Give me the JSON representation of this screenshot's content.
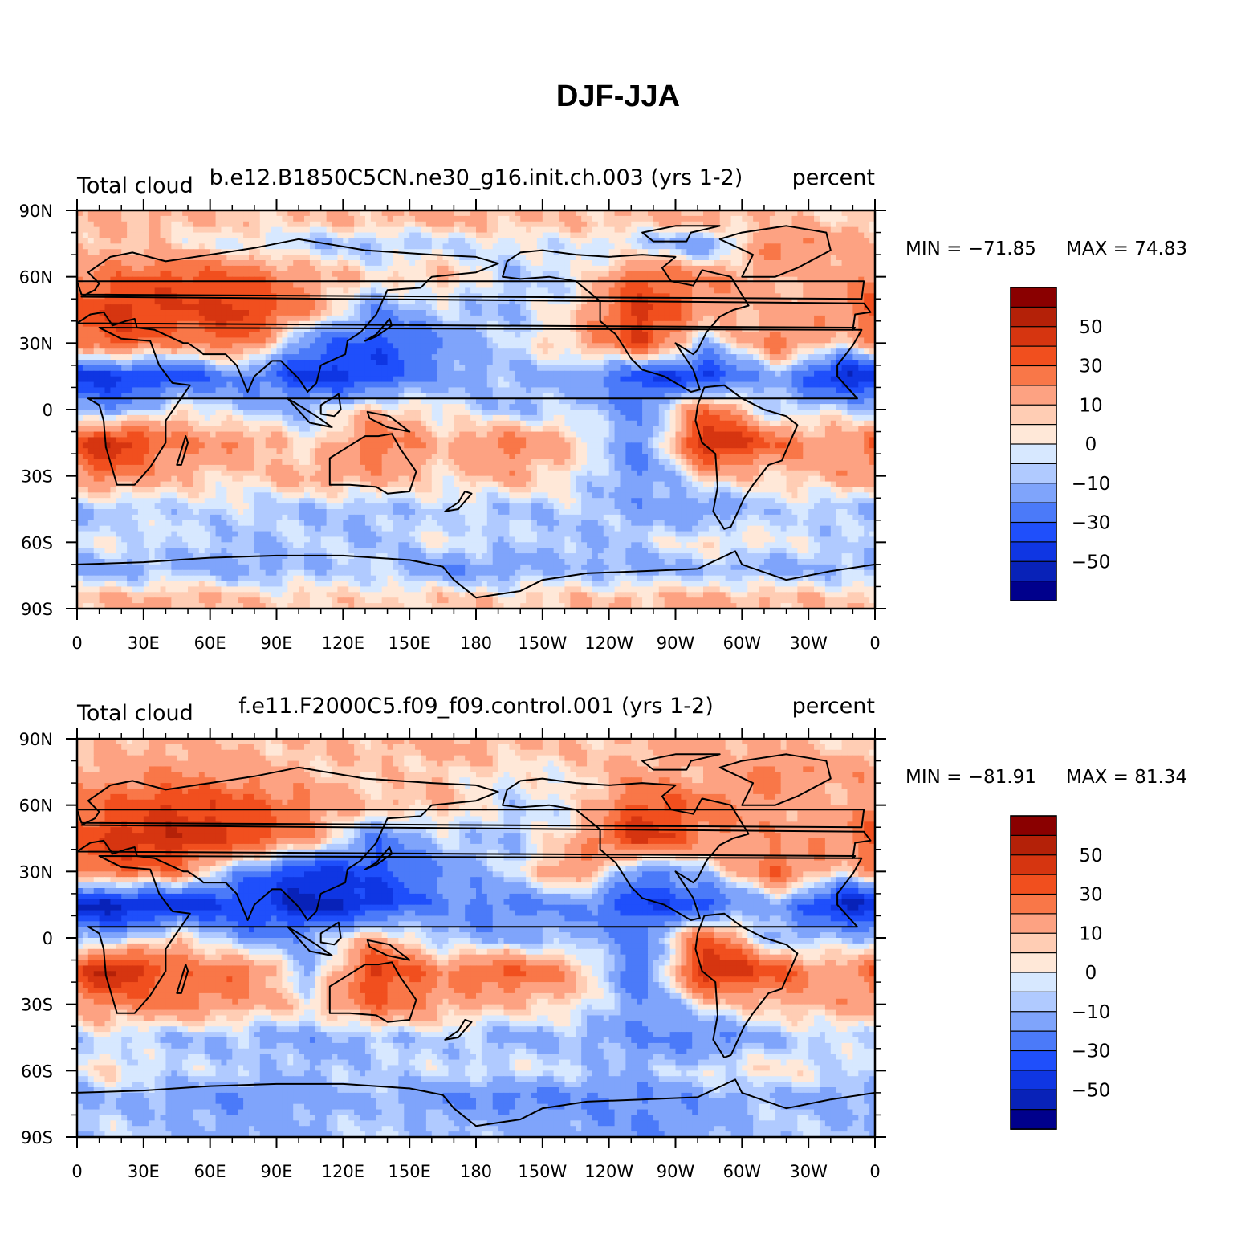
{
  "figure": {
    "title": "DJF-JJA"
  },
  "chart_data": [
    {
      "type": "heatmap",
      "title": "b.e12.B1850C5CN.ne30_g16.init.ch.003 (yrs 1-2)",
      "left_label": "Total cloud",
      "units": "percent",
      "min_label": "MIN = −71.85",
      "max_label": "MAX =   74.83",
      "min": -71.85,
      "max": 74.83,
      "xlabel": "",
      "ylabel": "",
      "xlim": [
        0,
        360
      ],
      "ylim": [
        -90,
        90
      ],
      "x_ticks": [
        "0",
        "30E",
        "60E",
        "90E",
        "120E",
        "150E",
        "180",
        "150W",
        "120W",
        "90W",
        "60W",
        "30W",
        "0"
      ],
      "y_ticks": [
        "90N",
        "60N",
        "30N",
        "0",
        "30S",
        "60S",
        "90S"
      ],
      "colorbar_levels": [
        -60,
        -50,
        -40,
        -30,
        -20,
        -10,
        -5,
        0,
        5,
        10,
        20,
        30,
        40,
        50,
        60
      ],
      "colorbar_labels": [
        "50",
        "30",
        "10",
        "0",
        "−10",
        "−30",
        "−50"
      ],
      "colorbar_colors": [
        "#00008c",
        "#0822b8",
        "#0f36e3",
        "#1f4ffb",
        "#4b7af9",
        "#7fa4fb",
        "#b0caff",
        "#d7e8ff",
        "#ffe8d8",
        "#ffcdb4",
        "#fda282",
        "#f97748",
        "#f14f1e",
        "#d63510",
        "#b42108",
        "#8a0000"
      ],
      "bands": [
        {
          "lat": 85,
          "values": [
            12,
            10,
            8,
            8,
            10,
            12,
            10,
            8,
            10,
            12,
            8,
            6
          ]
        },
        {
          "lat": 75,
          "values": [
            8,
            4,
            -2,
            -8,
            -10,
            -6,
            -2,
            0,
            -8,
            -20,
            25,
            15
          ]
        },
        {
          "lat": 60,
          "values": [
            25,
            35,
            30,
            15,
            5,
            10,
            -8,
            -3,
            30,
            20,
            10,
            15
          ]
        },
        {
          "lat": 45,
          "values": [
            45,
            40,
            45,
            20,
            -20,
            -5,
            -10,
            5,
            45,
            15,
            10,
            20
          ]
        },
        {
          "lat": 30,
          "values": [
            35,
            20,
            30,
            -25,
            -35,
            -20,
            -5,
            10,
            40,
            -10,
            25,
            5
          ]
        },
        {
          "lat": 15,
          "values": [
            -45,
            -40,
            -20,
            -45,
            -40,
            -15,
            -10,
            -15,
            -40,
            -45,
            -10,
            -55
          ]
        },
        {
          "lat": 0,
          "values": [
            -20,
            5,
            -10,
            -10,
            10,
            0,
            -10,
            -5,
            -20,
            30,
            -10,
            0
          ]
        },
        {
          "lat": -15,
          "values": [
            55,
            20,
            20,
            0,
            30,
            10,
            25,
            10,
            -25,
            55,
            30,
            10
          ]
        },
        {
          "lat": -30,
          "values": [
            25,
            10,
            5,
            15,
            15,
            5,
            15,
            0,
            -20,
            10,
            5,
            15
          ]
        },
        {
          "lat": -45,
          "values": [
            -10,
            -5,
            -5,
            -10,
            -10,
            -5,
            -10,
            -5,
            -15,
            -20,
            -5,
            -10
          ]
        },
        {
          "lat": -60,
          "values": [
            0,
            -5,
            -10,
            -5,
            -10,
            0,
            -5,
            -10,
            -5,
            5,
            0,
            -5
          ]
        },
        {
          "lat": -72,
          "values": [
            -15,
            -10,
            -15,
            -10,
            -5,
            -20,
            -15,
            -10,
            -15,
            -10,
            -15,
            -10
          ]
        },
        {
          "lat": -85,
          "values": [
            10,
            12,
            8,
            6,
            5,
            8,
            6,
            8,
            10,
            12,
            10,
            8
          ]
        }
      ]
    },
    {
      "type": "heatmap",
      "title": "f.e11.F2000C5.f09_f09.control.001 (yrs 1-2)",
      "left_label": "Total cloud",
      "units": "percent",
      "min_label": "MIN = −81.91",
      "max_label": "MAX =   81.34",
      "min": -81.91,
      "max": 81.34,
      "xlabel": "",
      "ylabel": "",
      "xlim": [
        0,
        360
      ],
      "ylim": [
        -90,
        90
      ],
      "x_ticks": [
        "0",
        "30E",
        "60E",
        "90E",
        "120E",
        "150E",
        "180",
        "150W",
        "120W",
        "90W",
        "60W",
        "30W",
        "0"
      ],
      "y_ticks": [
        "90N",
        "60N",
        "30N",
        "0",
        "30S",
        "60S",
        "90S"
      ],
      "colorbar_levels": [
        -60,
        -50,
        -40,
        -30,
        -20,
        -10,
        -5,
        0,
        5,
        10,
        20,
        30,
        40,
        50,
        60
      ],
      "colorbar_labels": [
        "50",
        "30",
        "10",
        "0",
        "−10",
        "−30",
        "−50"
      ],
      "colorbar_colors": [
        "#00008c",
        "#0822b8",
        "#0f36e3",
        "#1f4ffb",
        "#4b7af9",
        "#7fa4fb",
        "#b0caff",
        "#d7e8ff",
        "#ffe8d8",
        "#ffcdb4",
        "#fda282",
        "#f97748",
        "#f14f1e",
        "#d63510",
        "#b42108",
        "#8a0000"
      ],
      "bands": [
        {
          "lat": 85,
          "values": [
            10,
            12,
            10,
            8,
            10,
            12,
            10,
            8,
            10,
            15,
            10,
            8
          ]
        },
        {
          "lat": 75,
          "values": [
            15,
            20,
            15,
            10,
            5,
            8,
            0,
            5,
            15,
            10,
            25,
            15
          ]
        },
        {
          "lat": 60,
          "values": [
            30,
            40,
            35,
            20,
            10,
            10,
            -5,
            0,
            35,
            25,
            15,
            10
          ]
        },
        {
          "lat": 45,
          "values": [
            45,
            50,
            40,
            20,
            -25,
            -5,
            -10,
            10,
            50,
            20,
            15,
            20
          ]
        },
        {
          "lat": 30,
          "values": [
            30,
            25,
            -20,
            -45,
            -35,
            -20,
            -5,
            25,
            -25,
            -5,
            30,
            5
          ]
        },
        {
          "lat": 15,
          "values": [
            -55,
            -50,
            -40,
            -55,
            -45,
            -20,
            -25,
            -20,
            -40,
            -35,
            -10,
            -55
          ]
        },
        {
          "lat": 0,
          "values": [
            -15,
            10,
            -20,
            -15,
            15,
            -10,
            -15,
            -10,
            -25,
            35,
            -15,
            -5
          ]
        },
        {
          "lat": -15,
          "values": [
            60,
            25,
            30,
            -15,
            45,
            20,
            35,
            15,
            -30,
            55,
            35,
            10
          ]
        },
        {
          "lat": -30,
          "values": [
            20,
            25,
            15,
            5,
            30,
            15,
            10,
            5,
            -20,
            5,
            10,
            15
          ]
        },
        {
          "lat": -45,
          "values": [
            -5,
            -10,
            -10,
            -15,
            -10,
            -5,
            -15,
            -10,
            -20,
            -25,
            -10,
            -5
          ]
        },
        {
          "lat": -60,
          "values": [
            5,
            -5,
            -5,
            -10,
            -5,
            -5,
            0,
            -5,
            -10,
            0,
            5,
            -5
          ]
        },
        {
          "lat": -72,
          "values": [
            -10,
            -15,
            -20,
            -15,
            -10,
            -20,
            -25,
            -20,
            -20,
            -15,
            -10,
            -15
          ]
        },
        {
          "lat": -85,
          "values": [
            -5,
            -10,
            -15,
            -10,
            -5,
            -10,
            -10,
            -15,
            -20,
            -15,
            -5,
            -10
          ]
        }
      ]
    }
  ]
}
